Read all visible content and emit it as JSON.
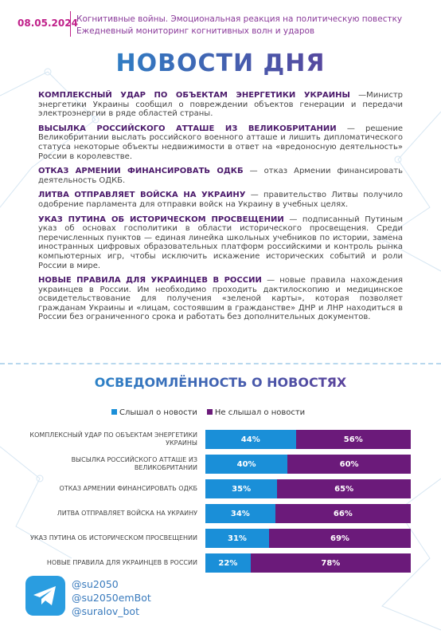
{
  "header": {
    "date": "08.05.2024",
    "line1": "Когнитивные войны. Эмоциональная реакция на политическую повестку",
    "line2": "Ежедневный мониторинг когнитивных волн и ударов"
  },
  "title": "НОВОСТИ ДНЯ",
  "news": [
    {
      "heading": "КОМПЛЕКСНЫЙ УДАР ПО ОБЪЕКТАМ ЭНЕРГЕТИКИ УКРАИНЫ",
      "text": "—Министр энергетики Украины сообщил о повреждении объектов генерации и передачи электроэнергии в ряде областей страны."
    },
    {
      "heading": "ВЫСЫЛКА РОССИЙСКОГО АТТАШЕ ИЗ ВЕЛИКОБРИТАНИИ",
      "text": "— решение Великобритании выслать российского военного атташе и лишить дипломатического статуса некоторые объекты недвижимости в ответ на «вредоносную деятельность» России в королевстве."
    },
    {
      "heading": "ОТКАЗ АРМЕНИИ ФИНАНСИРОВАТЬ ОДКБ",
      "text": "— отказ Армении финансировать деятельность ОДКБ."
    },
    {
      "heading": "ЛИТВА ОТПРАВЛЯЕТ ВОЙСКА НА УКРАИНУ",
      "text": "— правительство Литвы получило одобрение парламента для отправки войск на Украину в учебных целях."
    },
    {
      "heading": "УКАЗ ПУТИНА ОБ ИСТОРИЧЕСКОМ ПРОСВЕЩЕНИИ",
      "text": "— подписанный Путиным указ об основах госполитики в области исторического просвещения. Среди перечисленных пунктов — единая линейка школьных учебников по истории, замена иностранных цифровых образовательных платформ российскими и контроль рынка компьютерных игр, чтобы исключить искажение исторических событий и роли России в мире."
    },
    {
      "heading": "НОВЫЕ ПРАВИЛА ДЛЯ УКРАИНЦЕВ В РОССИИ",
      "text": "— новые правила нахождения украинцев в России. Им необходимо проходить дактилоскопию и медицинское освидетельствование для получения «зеленой карты», которая позволяет гражданам Украины и «лицам, состоявшим в гражданстве» ДНР и ЛНР находиться в России без ограниченного срока и работать без дополнительных документов."
    }
  ],
  "chart_data": {
    "type": "stacked-bar",
    "title": "ОСВЕДОМЛЁННОСТЬ О НОВОСТЯХ",
    "orientation": "horizontal",
    "xlim": [
      0,
      100
    ],
    "categories": [
      "КОМПЛЕКСНЫЙ УДАР ПО ОБЪЕКТАМ ЭНЕРГЕТИКИ УКРАИНЫ",
      "ВЫСЫЛКА РОССИЙСКОГО АТТАШЕ ИЗ ВЕЛИКОБРИТАНИИ",
      "ОТКАЗ АРМЕНИИ ФИНАНСИРОВАТЬ ОДКБ",
      "ЛИТВА ОТПРАВЛЯЕТ ВОЙСКА НА УКРАИНУ",
      "УКАЗ ПУТИНА ОБ ИСТОРИЧЕСКОМ ПРОСВЕЩЕНИИ",
      "НОВЫЕ ПРАВИЛА ДЛЯ УКРАИНЦЕВ В РОССИИ"
    ],
    "series": [
      {
        "name": "Слышал о новости",
        "color": "#1a8fd8",
        "values": [
          44,
          40,
          35,
          34,
          31,
          22
        ],
        "value_labels": [
          "44%",
          "40%",
          "35%",
          "34%",
          "31%",
          "22%"
        ]
      },
      {
        "name": "Не слышал о новости",
        "color": "#6b1a7a",
        "values": [
          56,
          60,
          65,
          66,
          69,
          78
        ],
        "value_labels": [
          "56%",
          "60%",
          "65%",
          "66%",
          "69%",
          "78%"
        ]
      }
    ]
  },
  "footer": {
    "handles": [
      "@su2050",
      "@su2050emBot",
      "@suralov_bot"
    ]
  }
}
